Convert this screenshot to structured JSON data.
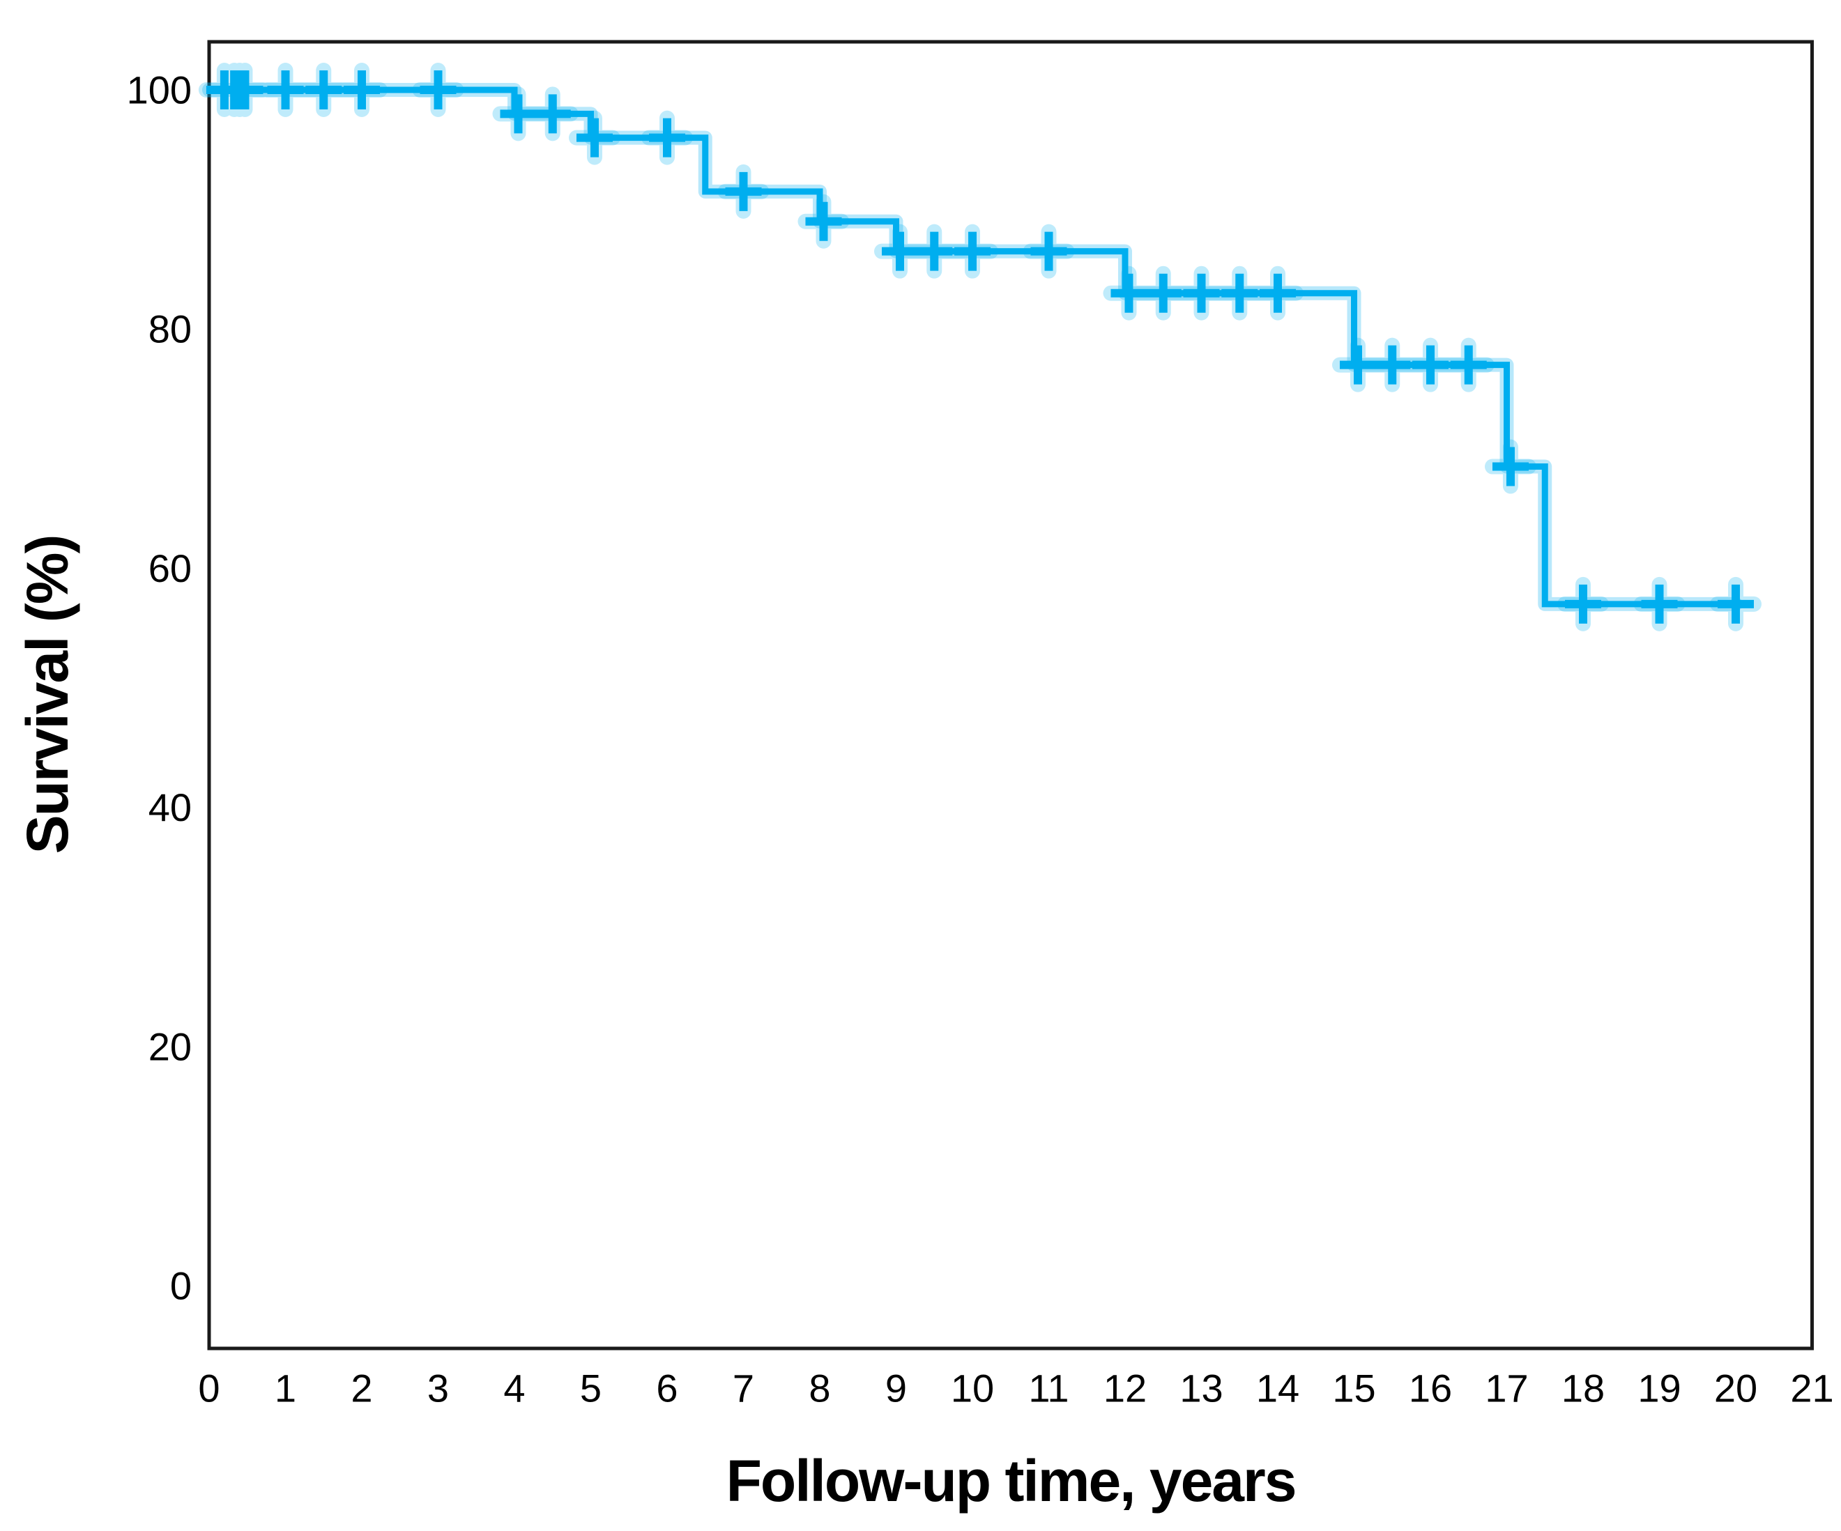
{
  "figure": {
    "background_color": "#ffffff"
  },
  "chart_data": {
    "type": "line",
    "subtype": "kaplan-meier-step-function",
    "title": "",
    "xlabel": "Follow-up time, years",
    "ylabel": "Survival (%)",
    "xlim": [
      0,
      21
    ],
    "ylim": [
      0,
      100
    ],
    "x_ticks": [
      0,
      1,
      2,
      3,
      4,
      5,
      6,
      7,
      8,
      9,
      10,
      11,
      12,
      13,
      14,
      15,
      16,
      17,
      18,
      19,
      20,
      21
    ],
    "y_ticks": [
      0,
      20,
      40,
      60,
      80,
      100
    ],
    "grid": false,
    "legend": "none",
    "curve_color": "#00AEEF",
    "axis_color": "#1a1a1a",
    "steps": [
      {
        "t_start": 0,
        "t_end": 4,
        "survival": 100
      },
      {
        "t_start": 4,
        "t_end": 5,
        "survival": 98
      },
      {
        "t_start": 5,
        "t_end": 6.5,
        "survival": 96
      },
      {
        "t_start": 6.5,
        "t_end": 8,
        "survival": 91.5
      },
      {
        "t_start": 8,
        "t_end": 9,
        "survival": 89
      },
      {
        "t_start": 9,
        "t_end": 12,
        "survival": 86.5
      },
      {
        "t_start": 12,
        "t_end": 15,
        "survival": 83
      },
      {
        "t_start": 15,
        "t_end": 17,
        "survival": 77
      },
      {
        "t_start": 17,
        "t_end": 17.5,
        "survival": 68.5
      },
      {
        "t_start": 17.5,
        "t_end": 20,
        "survival": 57
      }
    ],
    "censors": [
      {
        "t": 0.2,
        "s": 100
      },
      {
        "t": 0.33,
        "s": 100
      },
      {
        "t": 0.4,
        "s": 100
      },
      {
        "t": 0.47,
        "s": 100
      },
      {
        "t": 1.0,
        "s": 100
      },
      {
        "t": 1.5,
        "s": 100
      },
      {
        "t": 2.0,
        "s": 100
      },
      {
        "t": 3.0,
        "s": 100
      },
      {
        "t": 4.05,
        "s": 98
      },
      {
        "t": 4.5,
        "s": 98
      },
      {
        "t": 5.05,
        "s": 96
      },
      {
        "t": 6.0,
        "s": 96
      },
      {
        "t": 7.0,
        "s": 91.5
      },
      {
        "t": 8.05,
        "s": 89
      },
      {
        "t": 9.05,
        "s": 86.5
      },
      {
        "t": 9.5,
        "s": 86.5
      },
      {
        "t": 10.0,
        "s": 86.5
      },
      {
        "t": 11.0,
        "s": 86.5
      },
      {
        "t": 12.05,
        "s": 83
      },
      {
        "t": 12.5,
        "s": 83
      },
      {
        "t": 13.0,
        "s": 83
      },
      {
        "t": 13.5,
        "s": 83
      },
      {
        "t": 14.0,
        "s": 83
      },
      {
        "t": 15.05,
        "s": 77
      },
      {
        "t": 15.5,
        "s": 77
      },
      {
        "t": 16.0,
        "s": 77
      },
      {
        "t": 16.5,
        "s": 77
      },
      {
        "t": 17.05,
        "s": 68.5
      },
      {
        "t": 18.0,
        "s": 57
      },
      {
        "t": 19.0,
        "s": 57
      },
      {
        "t": 20.0,
        "s": 57
      }
    ]
  }
}
